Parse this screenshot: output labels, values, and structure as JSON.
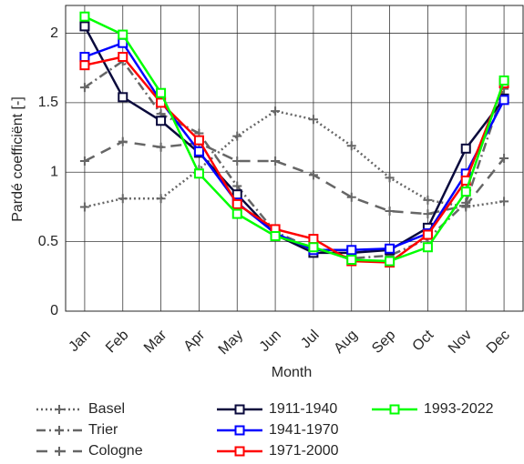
{
  "chart_data": {
    "type": "line",
    "xlabel": "Month",
    "ylabel": "Pardé coefficiënt [-]",
    "categories": [
      "Jan",
      "Feb",
      "Mar",
      "Apr",
      "May",
      "Jun",
      "Jul",
      "Aug",
      "Sep",
      "Oct",
      "Nov",
      "Dec"
    ],
    "ylim": [
      0,
      2.2
    ],
    "yticks": [
      0,
      0.5,
      1,
      1.5,
      2
    ],
    "grid": true,
    "series": [
      {
        "name": "Basel",
        "color": "#666666",
        "line_style": "dotted",
        "marker": "plus",
        "values": [
          0.75,
          0.81,
          0.81,
          1.02,
          1.26,
          1.44,
          1.38,
          1.19,
          0.96,
          0.8,
          0.75,
          0.79
        ]
      },
      {
        "name": "Trier",
        "color": "#666666",
        "line_style": "dashdot",
        "marker": "plus",
        "values": [
          1.61,
          1.8,
          1.42,
          1.28,
          0.9,
          0.57,
          0.45,
          0.38,
          0.4,
          0.52,
          0.78,
          1.6
        ]
      },
      {
        "name": "Cologne",
        "color": "#666666",
        "line_style": "dashed",
        "marker": "plus",
        "values": [
          1.08,
          1.22,
          1.18,
          1.21,
          1.08,
          1.08,
          0.98,
          0.82,
          0.72,
          0.7,
          0.76,
          1.1
        ]
      },
      {
        "name": "1911-1940",
        "color": "#0a0a3c",
        "line_style": "solid",
        "marker": "square",
        "values": [
          2.05,
          1.54,
          1.37,
          1.14,
          0.84,
          0.55,
          0.42,
          0.42,
          0.44,
          0.6,
          1.17,
          1.53
        ]
      },
      {
        "name": "1941-1970",
        "color": "#0000ff",
        "line_style": "solid",
        "marker": "square",
        "values": [
          1.83,
          1.93,
          1.51,
          1.15,
          0.78,
          0.56,
          0.44,
          0.44,
          0.45,
          0.56,
          0.99,
          1.52
        ]
      },
      {
        "name": "1971-2000",
        "color": "#ff0000",
        "line_style": "solid",
        "marker": "square",
        "values": [
          1.77,
          1.83,
          1.5,
          1.23,
          0.77,
          0.59,
          0.52,
          0.36,
          0.35,
          0.55,
          0.94,
          1.64
        ]
      },
      {
        "name": "1993-2022",
        "color": "#00ff00",
        "line_style": "solid",
        "marker": "square",
        "values": [
          2.12,
          1.99,
          1.57,
          0.99,
          0.7,
          0.54,
          0.46,
          0.37,
          0.36,
          0.46,
          0.86,
          1.66
        ]
      }
    ]
  }
}
